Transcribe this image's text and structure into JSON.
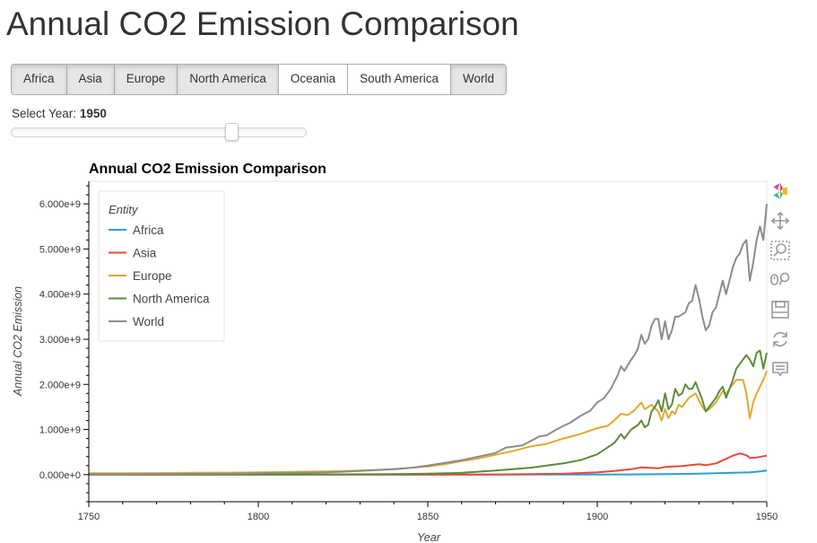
{
  "page": {
    "title": "Annual CO2 Emission Comparison"
  },
  "region_buttons": [
    {
      "label": "Africa",
      "active": true
    },
    {
      "label": "Asia",
      "active": true
    },
    {
      "label": "Europe",
      "active": true
    },
    {
      "label": "North America",
      "active": true
    },
    {
      "label": "Oceania",
      "active": false
    },
    {
      "label": "South America",
      "active": false
    },
    {
      "label": "World",
      "active": true
    }
  ],
  "slider": {
    "label": "Select Year: ",
    "value": "1950",
    "fraction": 0.75
  },
  "toolbar": {
    "tools": [
      "bokeh-logo-icon",
      "pan-icon",
      "box-zoom-icon",
      "wheel-zoom-icon",
      "save-icon",
      "reset-icon",
      "hover-icon"
    ]
  },
  "chart_data": {
    "type": "line",
    "title": "Annual CO2 Emission Comparison",
    "xlabel": "Year",
    "ylabel": "Annual CO2 Emission",
    "xlim": [
      1750,
      1950
    ],
    "ylim": [
      -600000000,
      6500000000
    ],
    "x_ticks": [
      1750,
      1800,
      1850,
      1900,
      1950
    ],
    "x_tick_labels": [
      "1750",
      "1800",
      "1850",
      "1900",
      "1950"
    ],
    "y_ticks": [
      0,
      1000000000,
      2000000000,
      3000000000,
      4000000000,
      5000000000,
      6000000000
    ],
    "y_tick_labels": [
      "0.000e+0",
      "1.000e+9",
      "2.000e+9",
      "3.000e+9",
      "4.000e+9",
      "5.000e+9",
      "6.000e+9"
    ],
    "legend": {
      "title": "Entity",
      "placement": "top-left"
    },
    "grid": false,
    "series": [
      {
        "name": "Africa",
        "color": "#2b9fd9",
        "points": [
          [
            1750,
            0
          ],
          [
            1890,
            0
          ],
          [
            1900,
            1000000
          ],
          [
            1910,
            5000000
          ],
          [
            1920,
            12000000
          ],
          [
            1930,
            20000000
          ],
          [
            1940,
            40000000
          ],
          [
            1945,
            50000000
          ],
          [
            1948,
            70000000
          ],
          [
            1950,
            90000000
          ]
        ]
      },
      {
        "name": "Asia",
        "color": "#e8493a",
        "points": [
          [
            1750,
            0
          ],
          [
            1870,
            2000000
          ],
          [
            1880,
            10000000
          ],
          [
            1890,
            20000000
          ],
          [
            1900,
            50000000
          ],
          [
            1905,
            80000000
          ],
          [
            1910,
            120000000
          ],
          [
            1913,
            160000000
          ],
          [
            1918,
            140000000
          ],
          [
            1920,
            170000000
          ],
          [
            1925,
            190000000
          ],
          [
            1930,
            230000000
          ],
          [
            1932,
            210000000
          ],
          [
            1935,
            250000000
          ],
          [
            1938,
            350000000
          ],
          [
            1940,
            420000000
          ],
          [
            1942,
            470000000
          ],
          [
            1944,
            430000000
          ],
          [
            1945,
            370000000
          ],
          [
            1947,
            380000000
          ],
          [
            1950,
            420000000
          ]
        ]
      },
      {
        "name": "Europe",
        "color": "#e0a92e",
        "points": [
          [
            1750,
            30000000
          ],
          [
            1760,
            30000000
          ],
          [
            1770,
            35000000
          ],
          [
            1780,
            40000000
          ],
          [
            1790,
            45000000
          ],
          [
            1800,
            50000000
          ],
          [
            1810,
            60000000
          ],
          [
            1820,
            70000000
          ],
          [
            1830,
            90000000
          ],
          [
            1840,
            120000000
          ],
          [
            1850,
            180000000
          ],
          [
            1855,
            230000000
          ],
          [
            1860,
            300000000
          ],
          [
            1865,
            360000000
          ],
          [
            1870,
            440000000
          ],
          [
            1875,
            520000000
          ],
          [
            1880,
            620000000
          ],
          [
            1885,
            680000000
          ],
          [
            1890,
            800000000
          ],
          [
            1895,
            900000000
          ],
          [
            1900,
            1030000000
          ],
          [
            1903,
            1080000000
          ],
          [
            1905,
            1200000000
          ],
          [
            1907,
            1350000000
          ],
          [
            1909,
            1320000000
          ],
          [
            1911,
            1430000000
          ],
          [
            1913,
            1600000000
          ],
          [
            1914,
            1450000000
          ],
          [
            1916,
            1550000000
          ],
          [
            1918,
            1400000000
          ],
          [
            1919,
            1200000000
          ],
          [
            1920,
            1450000000
          ],
          [
            1921,
            1250000000
          ],
          [
            1922,
            1400000000
          ],
          [
            1923,
            1350000000
          ],
          [
            1924,
            1550000000
          ],
          [
            1925,
            1500000000
          ],
          [
            1927,
            1700000000
          ],
          [
            1929,
            1800000000
          ],
          [
            1930,
            1650000000
          ],
          [
            1931,
            1500000000
          ],
          [
            1932,
            1400000000
          ],
          [
            1933,
            1450000000
          ],
          [
            1935,
            1600000000
          ],
          [
            1937,
            1850000000
          ],
          [
            1938,
            1800000000
          ],
          [
            1939,
            1900000000
          ],
          [
            1940,
            2000000000
          ],
          [
            1941,
            2100000000
          ],
          [
            1943,
            2100000000
          ],
          [
            1944,
            1800000000
          ],
          [
            1945,
            1250000000
          ],
          [
            1946,
            1600000000
          ],
          [
            1947,
            1800000000
          ],
          [
            1948,
            1950000000
          ],
          [
            1949,
            2100000000
          ],
          [
            1950,
            2300000000
          ]
        ]
      },
      {
        "name": "North America",
        "color": "#5d8c3c",
        "points": [
          [
            1750,
            0
          ],
          [
            1800,
            3000000
          ],
          [
            1820,
            6000000
          ],
          [
            1840,
            10000000
          ],
          [
            1850,
            20000000
          ],
          [
            1860,
            40000000
          ],
          [
            1870,
            90000000
          ],
          [
            1875,
            120000000
          ],
          [
            1880,
            150000000
          ],
          [
            1885,
            200000000
          ],
          [
            1890,
            250000000
          ],
          [
            1895,
            320000000
          ],
          [
            1900,
            450000000
          ],
          [
            1903,
            600000000
          ],
          [
            1905,
            700000000
          ],
          [
            1907,
            900000000
          ],
          [
            1908,
            800000000
          ],
          [
            1910,
            1000000000
          ],
          [
            1912,
            1100000000
          ],
          [
            1913,
            1200000000
          ],
          [
            1914,
            1050000000
          ],
          [
            1915,
            1100000000
          ],
          [
            1916,
            1400000000
          ],
          [
            1917,
            1500000000
          ],
          [
            1918,
            1650000000
          ],
          [
            1919,
            1400000000
          ],
          [
            1920,
            1800000000
          ],
          [
            1921,
            1450000000
          ],
          [
            1922,
            1550000000
          ],
          [
            1923,
            1900000000
          ],
          [
            1924,
            1750000000
          ],
          [
            1925,
            1800000000
          ],
          [
            1926,
            2000000000
          ],
          [
            1927,
            1900000000
          ],
          [
            1928,
            1900000000
          ],
          [
            1929,
            2050000000
          ],
          [
            1930,
            1850000000
          ],
          [
            1931,
            1650000000
          ],
          [
            1932,
            1400000000
          ],
          [
            1933,
            1500000000
          ],
          [
            1934,
            1600000000
          ],
          [
            1935,
            1700000000
          ],
          [
            1936,
            1850000000
          ],
          [
            1937,
            1950000000
          ],
          [
            1938,
            1700000000
          ],
          [
            1939,
            1900000000
          ],
          [
            1940,
            2100000000
          ],
          [
            1941,
            2350000000
          ],
          [
            1942,
            2450000000
          ],
          [
            1943,
            2550000000
          ],
          [
            1944,
            2650000000
          ],
          [
            1945,
            2550000000
          ],
          [
            1946,
            2400000000
          ],
          [
            1947,
            2700000000
          ],
          [
            1948,
            2750000000
          ],
          [
            1949,
            2350000000
          ],
          [
            1950,
            2700000000
          ]
        ]
      },
      {
        "name": "World",
        "color": "#8c8c8c",
        "points": [
          [
            1750,
            10000000
          ],
          [
            1770,
            15000000
          ],
          [
            1790,
            20000000
          ],
          [
            1800,
            30000000
          ],
          [
            1810,
            40000000
          ],
          [
            1820,
            50000000
          ],
          [
            1830,
            80000000
          ],
          [
            1840,
            120000000
          ],
          [
            1845,
            150000000
          ],
          [
            1850,
            200000000
          ],
          [
            1855,
            260000000
          ],
          [
            1860,
            320000000
          ],
          [
            1865,
            400000000
          ],
          [
            1870,
            480000000
          ],
          [
            1873,
            600000000
          ],
          [
            1875,
            620000000
          ],
          [
            1878,
            650000000
          ],
          [
            1880,
            730000000
          ],
          [
            1883,
            850000000
          ],
          [
            1885,
            870000000
          ],
          [
            1888,
            1000000000
          ],
          [
            1890,
            1080000000
          ],
          [
            1892,
            1150000000
          ],
          [
            1895,
            1300000000
          ],
          [
            1898,
            1420000000
          ],
          [
            1900,
            1600000000
          ],
          [
            1902,
            1700000000
          ],
          [
            1904,
            1900000000
          ],
          [
            1906,
            2200000000
          ],
          [
            1907,
            2400000000
          ],
          [
            1908,
            2300000000
          ],
          [
            1910,
            2550000000
          ],
          [
            1911,
            2650000000
          ],
          [
            1912,
            2800000000
          ],
          [
            1913,
            3100000000
          ],
          [
            1914,
            2900000000
          ],
          [
            1915,
            3000000000
          ],
          [
            1916,
            3300000000
          ],
          [
            1917,
            3450000000
          ],
          [
            1918,
            3450000000
          ],
          [
            1919,
            3000000000
          ],
          [
            1920,
            3400000000
          ],
          [
            1921,
            3000000000
          ],
          [
            1922,
            3200000000
          ],
          [
            1923,
            3500000000
          ],
          [
            1924,
            3500000000
          ],
          [
            1925,
            3550000000
          ],
          [
            1926,
            3600000000
          ],
          [
            1927,
            3800000000
          ],
          [
            1928,
            3850000000
          ],
          [
            1929,
            4200000000
          ],
          [
            1930,
            3900000000
          ],
          [
            1931,
            3500000000
          ],
          [
            1932,
            3200000000
          ],
          [
            1933,
            3300000000
          ],
          [
            1934,
            3600000000
          ],
          [
            1935,
            3700000000
          ],
          [
            1936,
            4000000000
          ],
          [
            1937,
            4300000000
          ],
          [
            1938,
            4000000000
          ],
          [
            1939,
            4300000000
          ],
          [
            1940,
            4600000000
          ],
          [
            1941,
            4800000000
          ],
          [
            1942,
            4900000000
          ],
          [
            1943,
            5100000000
          ],
          [
            1944,
            5200000000
          ],
          [
            1945,
            4300000000
          ],
          [
            1946,
            4700000000
          ],
          [
            1947,
            5200000000
          ],
          [
            1948,
            5500000000
          ],
          [
            1949,
            5200000000
          ],
          [
            1950,
            6000000000
          ]
        ]
      }
    ]
  }
}
